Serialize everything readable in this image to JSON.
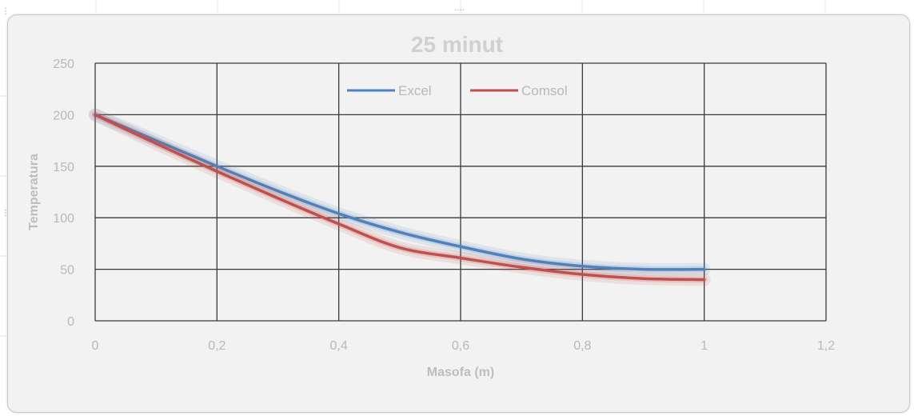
{
  "chart_data": {
    "type": "line",
    "title": "25 minut",
    "xlabel": "Masofa (m)",
    "ylabel": "Temperatura",
    "xlim": [
      0,
      1.2
    ],
    "ylim": [
      0,
      250
    ],
    "x_ticks": [
      0,
      0.2,
      0.4,
      0.6,
      0.8,
      1,
      1.2
    ],
    "x_tick_labels": [
      "0",
      "0,2",
      "0,4",
      "0,6",
      "0,8",
      "1",
      "1,2"
    ],
    "y_ticks": [
      0,
      50,
      100,
      150,
      200,
      250
    ],
    "y_tick_labels": [
      "0",
      "50",
      "100",
      "150",
      "200",
      "250"
    ],
    "grid": true,
    "legend_position": "top-center",
    "series": [
      {
        "name": "Excel",
        "color": "#4f81bd",
        "x": [
          0,
          0.1,
          0.2,
          0.3,
          0.4,
          0.5,
          0.6,
          0.7,
          0.8,
          0.9,
          1
        ],
        "values": [
          200,
          175,
          150,
          126,
          104,
          86,
          72,
          60,
          53,
          50,
          50
        ]
      },
      {
        "name": "Comsol",
        "color": "#c0504d",
        "x": [
          0,
          0.1,
          0.2,
          0.3,
          0.4,
          0.5,
          0.6,
          0.7,
          0.8,
          0.9,
          1
        ],
        "values": [
          200,
          172,
          145,
          119,
          94,
          71,
          61,
          52,
          45,
          41,
          40
        ]
      }
    ]
  }
}
